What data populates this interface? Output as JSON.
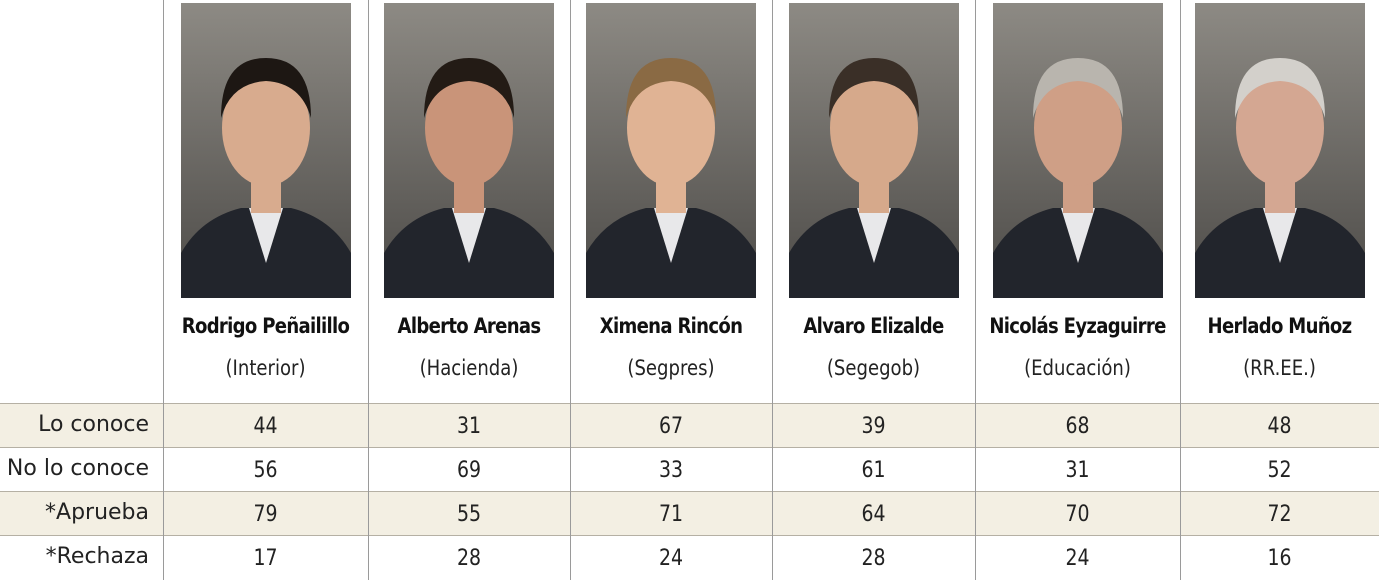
{
  "columns": [
    {
      "name": "Rodrigo Peñailillo",
      "role": "(Interior)"
    },
    {
      "name": "Alberto Arenas",
      "role": "(Hacienda)"
    },
    {
      "name": "Ximena Rincón",
      "role": "(Segpres)"
    },
    {
      "name": "Alvaro Elizalde",
      "role": "(Segegob)"
    },
    {
      "name": "Nicolás Eyzaguirre",
      "role": "(Educación)"
    },
    {
      "name": "Herlado Muñoz",
      "role": "(RR.EE.)"
    }
  ],
  "rows": [
    {
      "label": "Lo conoce",
      "values": [
        44,
        31,
        67,
        39,
        68,
        48
      ]
    },
    {
      "label": "No lo conoce",
      "values": [
        56,
        69,
        33,
        61,
        31,
        52
      ]
    },
    {
      "label": "*Aprueba",
      "values": [
        79,
        55,
        71,
        64,
        70,
        72
      ]
    },
    {
      "label": "*Rechaza",
      "values": [
        17,
        28,
        24,
        28,
        24,
        16
      ]
    }
  ]
}
